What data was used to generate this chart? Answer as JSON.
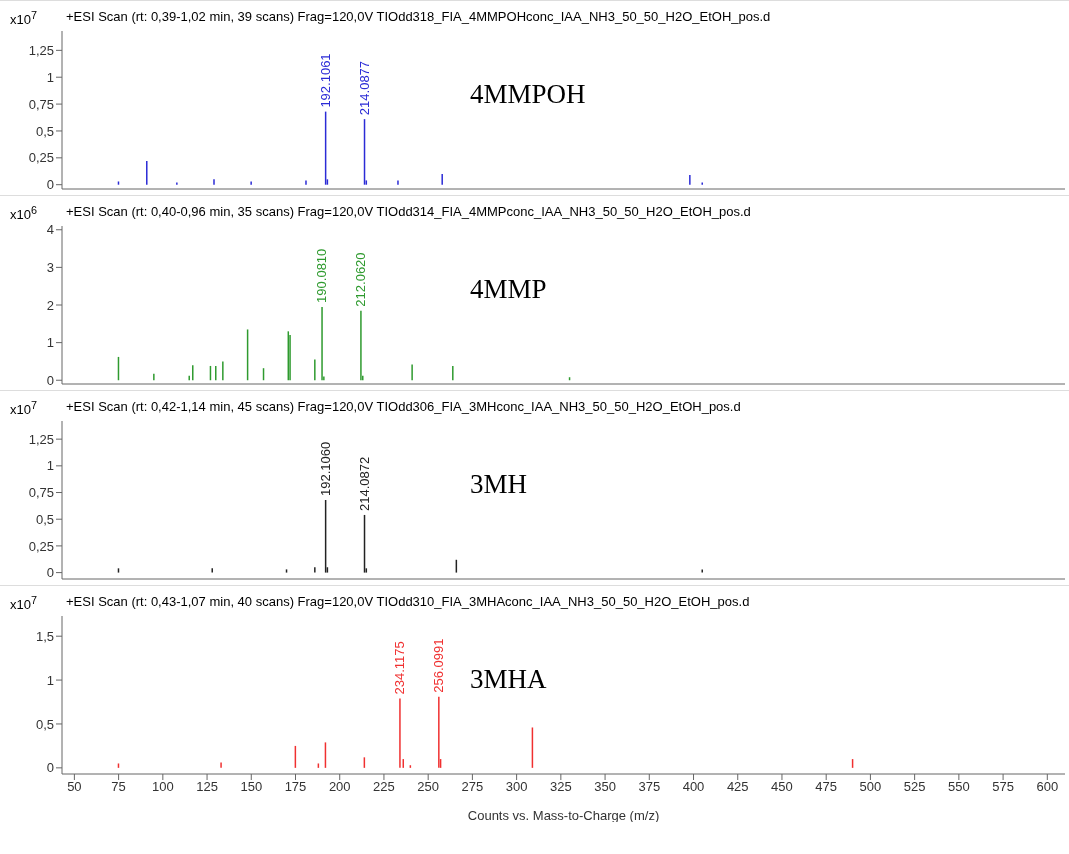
{
  "chart_data": [
    {
      "type": "bar",
      "title": "+ESI Scan (rt: 0,39-1,02 min, 39 scans) Frag=120,0V TIOdd318_FIA_4MMPOHconc_IAA_NH3_50_50_H2O_EtOH_pos.d",
      "ylabel": "x10$^{7}$",
      "color": "#2b2bd6",
      "x": [
        75,
        91,
        108,
        129,
        150,
        181,
        192.1061,
        193.1,
        214.0877,
        215.1,
        233,
        258,
        398,
        405
      ],
      "values": [
        0.03,
        0.22,
        0.02,
        0.05,
        0.03,
        0.04,
        0.68,
        0.05,
        0.61,
        0.04,
        0.04,
        0.1,
        0.09,
        0.02
      ],
      "xlim": [
        43,
        610
      ],
      "ylim": [
        -0.04,
        1.43
      ],
      "yticks": [
        0,
        {
          "value": 0.25,
          "label": "0,25"
        },
        {
          "value": 0.5,
          "label": "0,5"
        },
        {
          "value": 0.75,
          "label": "0,75"
        },
        1,
        {
          "value": 1.25,
          "label": "1,25"
        }
      ],
      "tick_labels": "y",
      "annotations": [
        {
          "text": "192.1061",
          "x": 192.1061,
          "y": 0.68
        },
        {
          "text": "214.0877",
          "x": 214.0877,
          "y": 0.61
        },
        "4MMPOH"
      ]
    },
    {
      "type": "bar",
      "title": "+ESI Scan (rt: 0,40-0,96 min, 35 scans) Frag=120,0V TIOdd314_FIA_4MMPconc_IAA_NH3_50_50_H2O_EtOH_pos.d",
      "ylabel": "x10$^{6}$",
      "color": "#2e9a2e",
      "x": [
        75,
        95,
        115,
        117,
        127,
        130,
        134,
        148,
        157,
        171,
        172,
        186,
        190.081,
        191.1,
        212.062,
        213.1,
        241,
        264,
        330
      ],
      "values": [
        0.62,
        0.17,
        0.12,
        0.4,
        0.38,
        0.38,
        0.5,
        1.35,
        0.32,
        1.3,
        1.2,
        0.55,
        1.95,
        0.1,
        1.85,
        0.12,
        0.42,
        0.38,
        0.08
      ],
      "xlim": [
        43,
        610
      ],
      "ylim": [
        -0.1,
        4.1
      ],
      "yticks": [
        0,
        1,
        2,
        3,
        4
      ],
      "tick_labels": "y",
      "annotations": [
        {
          "text": "190.0810",
          "x": 190.081,
          "y": 1.95
        },
        {
          "text": "212.0620",
          "x": 212.062,
          "y": 1.85
        },
        "4MMP"
      ]
    },
    {
      "type": "bar",
      "title": "+ESI Scan (rt: 0,42-1,14 min, 45 scans) Frag=120,0V TIOdd306_FIA_3MHconc_IAA_NH3_50_50_H2O_EtOH_pos.d",
      "ylabel": "x10$^{7}$",
      "color": "#222222",
      "x": [
        75,
        128,
        170,
        186,
        192.106,
        193.1,
        214.0872,
        215.1,
        266,
        405
      ],
      "values": [
        0.04,
        0.04,
        0.03,
        0.05,
        0.68,
        0.05,
        0.54,
        0.04,
        0.12,
        0.03
      ],
      "xlim": [
        43,
        610
      ],
      "ylim": [
        -0.06,
        1.42
      ],
      "yticks": [
        0,
        {
          "value": 0.25,
          "label": "0,25"
        },
        {
          "value": 0.5,
          "label": "0,5"
        },
        {
          "value": 0.75,
          "label": "0,75"
        },
        1,
        {
          "value": 1.25,
          "label": "1,25"
        }
      ],
      "tick_labels": "y",
      "annotations": [
        {
          "text": "192.1060",
          "x": 192.106,
          "y": 0.68
        },
        {
          "text": "214.0872",
          "x": 214.0872,
          "y": 0.54
        },
        "3MH"
      ]
    },
    {
      "type": "bar",
      "title": "+ESI Scan (rt: 0,43-1,07 min, 40 scans) Frag=120,0V TIOdd310_FIA_3MHAconc_IAA_NH3_50_50_H2O_EtOH_pos.d",
      "ylabel": "x10$^{7}$",
      "xlabel": "Counts vs. Mass-to-Charge (m/z)",
      "color": "#f03030",
      "x": [
        75,
        133,
        175,
        188,
        192,
        214,
        234.1175,
        236,
        240,
        256.0991,
        257.1,
        309,
        490
      ],
      "values": [
        0.05,
        0.06,
        0.25,
        0.05,
        0.29,
        0.12,
        0.79,
        0.1,
        0.03,
        0.81,
        0.1,
        0.46,
        0.1
      ],
      "xlim": [
        43,
        610
      ],
      "xticks": [
        50,
        75,
        100,
        125,
        150,
        175,
        200,
        225,
        250,
        275,
        300,
        325,
        350,
        375,
        400,
        425,
        450,
        475,
        500,
        525,
        550,
        575,
        600
      ],
      "ylim": [
        -0.07,
        1.73
      ],
      "yticks": [
        0,
        {
          "value": 0.5,
          "label": "0,5"
        },
        1,
        {
          "value": 1.5,
          "label": "1,5"
        }
      ],
      "annotations": [
        {
          "text": "234.1175",
          "x": 234.1175,
          "y": 0.79
        },
        {
          "text": "256.0991",
          "x": 256.0991,
          "y": 0.81
        },
        "3MHA"
      ]
    }
  ]
}
